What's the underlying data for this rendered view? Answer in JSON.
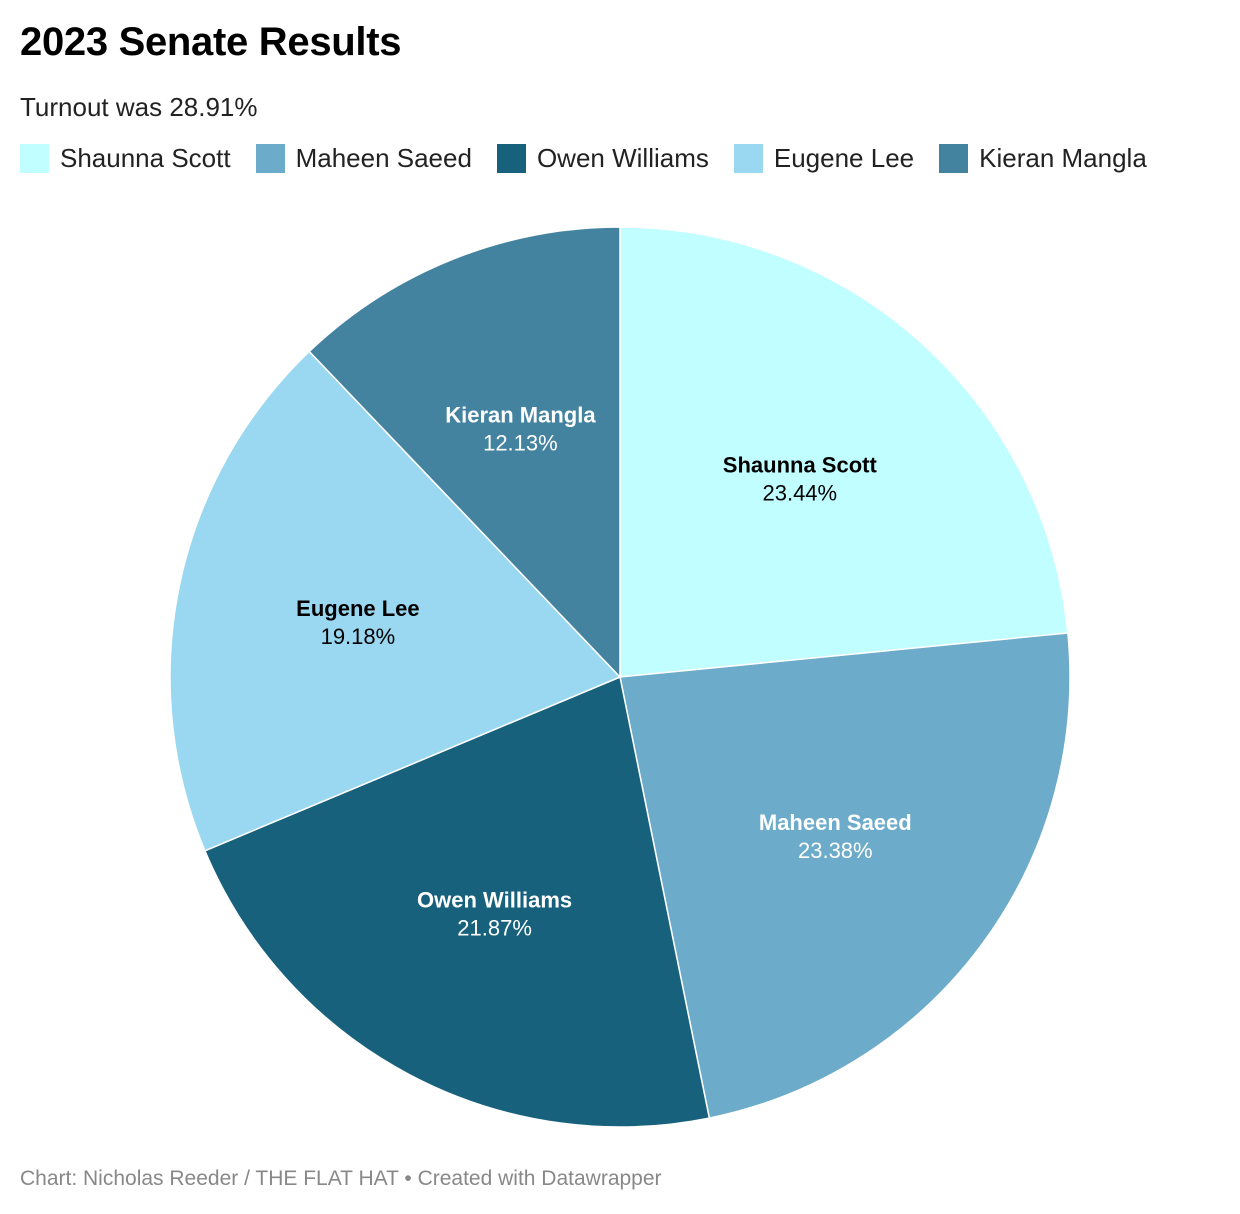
{
  "title": "2023 Senate Results",
  "subtitle": "Turnout was 28.91%",
  "footer": {
    "credit": "Chart: Nicholas Reeder / THE FLAT HAT",
    "separator": "•",
    "created_with": "Created with Datawrapper"
  },
  "chart_data": {
    "type": "pie",
    "categories": [
      "Shaunna Scott",
      "Maheen Saeed",
      "Owen Williams",
      "Eugene Lee",
      "Kieran Mangla"
    ],
    "values": [
      23.44,
      23.38,
      21.87,
      19.18,
      12.13
    ],
    "labels": [
      "23.44%",
      "23.38%",
      "21.87%",
      "19.18%",
      "12.13%"
    ],
    "colors": [
      "#c1feff",
      "#6cabc9",
      "#17617c",
      "#9ad7f1",
      "#4483a0"
    ],
    "label_colors": [
      "#000000",
      "#ffffff",
      "#ffffff",
      "#000000",
      "#ffffff"
    ],
    "start_angle": "12 o'clock",
    "direction": "clockwise",
    "legend_position": "top-left"
  }
}
